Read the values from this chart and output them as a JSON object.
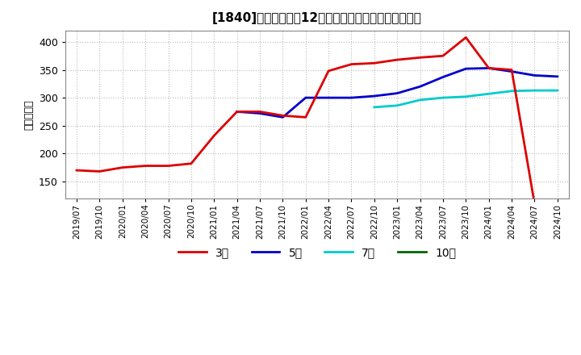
{
  "title": "[1840]　当期純利益12か月移動合計の標準偏差の推移",
  "ylabel": "（百万円）",
  "ylim": [
    120,
    420
  ],
  "yticks": [
    150,
    200,
    250,
    300,
    350,
    400
  ],
  "background_color": "#ffffff",
  "plot_background": "#ffffff",
  "grid_color": "#bbbbbb",
  "line_3y_color": "#dd0000",
  "line_5y_color": "#0000cc",
  "line_7y_color": "#00cccc",
  "line_10y_color": "#006600",
  "legend_labels": [
    "3年",
    "5年",
    "7年",
    "10年"
  ],
  "x_labels": [
    "2019/07",
    "2019/10",
    "2020/01",
    "2020/04",
    "2020/07",
    "2020/10",
    "2021/01",
    "2021/04",
    "2021/07",
    "2021/10",
    "2022/01",
    "2022/04",
    "2022/07",
    "2022/10",
    "2023/01",
    "2023/04",
    "2023/07",
    "2023/10",
    "2024/01",
    "2024/04",
    "2024/07",
    "2024/10"
  ],
  "series_3y_x": [
    0,
    1,
    2,
    3,
    4,
    5,
    6,
    7,
    8,
    9,
    10,
    11,
    12,
    13,
    14,
    15,
    16,
    17,
    18,
    19,
    20
  ],
  "series_3y_y": [
    170,
    168,
    175,
    178,
    178,
    182,
    232,
    275,
    275,
    268,
    265,
    348,
    360,
    362,
    368,
    372,
    375,
    408,
    353,
    350,
    110
  ],
  "series_5y_x": [
    7,
    8,
    9,
    10,
    11,
    12,
    13,
    14,
    15,
    16,
    17,
    18,
    19,
    20,
    21
  ],
  "series_5y_y": [
    275,
    272,
    265,
    300,
    300,
    300,
    303,
    308,
    320,
    337,
    352,
    353,
    347,
    340,
    338
  ],
  "series_7y_x": [
    13,
    14,
    15,
    16,
    17,
    18,
    19,
    20,
    21
  ],
  "series_7y_y": [
    283,
    286,
    296,
    300,
    302,
    307,
    312,
    313,
    313
  ],
  "series_10y_x": [],
  "series_10y_y": []
}
